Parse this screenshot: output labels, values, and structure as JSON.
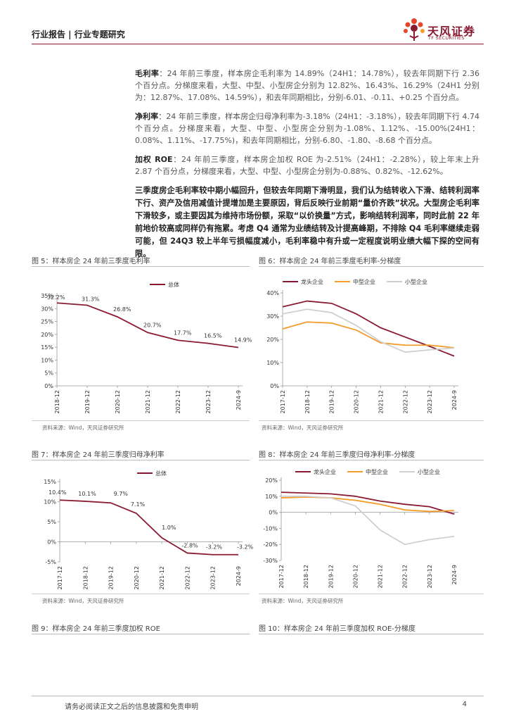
{
  "header": {
    "title": "行业报告 | 行业专题研究"
  },
  "logo": {
    "cn": "天风证券",
    "en": "TF SECURITIES"
  },
  "paragraphs": {
    "p1": {
      "key": "毛利率",
      "text": "：24 年前三季度，样本房企毛利率为 14.89%（24H1：14.78%），较去年同期下行 2.36 个百分点。分梯度来看，大型、中型、小型房企分别为 12.82%、16.43%、16.29%（24H1 分别为：12.87%、17.08%、14.59%），和去年同期相比，分别-6.01、-0.11、+0.25 个百分点。"
    },
    "p2": {
      "key": "净利率",
      "text": "：24 年前三季度，样本房企归母净利率为-3.18%（24H1：-3.18%），较去年同期下行 4.74 个百分点。分梯度来看，大型、中型、小型房企分别为-1.08%、1.12%、-15.00%(24H1：0.08%、1.11%、-17.75%)，和去年同期相比，分别-6.80、-1.80、-8.68 个百分点。"
    },
    "p3": {
      "key": "加权 ROE",
      "text": "：24 年前三季度，样本房企加权 ROE 为-2.51%（24H1：-2.28%），较上年末上升 2.87 个百分点，分梯度来看，大型、中型、小型房企分别为-0.88%、0.82%、-12.62%。"
    },
    "p4": "三季度房企毛利率较中期小幅回升，但较去年同期下滑明显，我们认为结转收入下滑、结转利润率下行、资产及信用减值计提增加是主要原因，背后反映行业前期“量价齐跌”状况。大型房企毛利率下滑较多，或主要因其为维持市场份额，采取“以价换量”方式，影响结转利润率，同时此前 22 年前地价较高或同样仍有拖累。考虑 Q4 通常为业绩结转及计提高峰期，不排除 Q4 毛利率继续走弱可能，但 24Q3 较上半年亏损幅度减小，毛利率稳中有升或一定程度说明业绩大幅下探的空间有限。"
  },
  "figures": {
    "fig5": {
      "title": "图 5：样本房企 24 年前三季度毛利率",
      "source": "资料来源：Wind，天风证券研究所"
    },
    "fig6": {
      "title": "图 6：样本房企 24 年前三季度毛利率-分梯度",
      "source": "资料来源：Wind，天风证券研究所"
    },
    "fig7": {
      "title": "图 7：样本房企 24 年前三季度归母净利率",
      "source": "资料来源：Wind，天风证券研究所"
    },
    "fig8": {
      "title": "图 8：样本房企 24 年前三季度归母净利率-分梯度",
      "source": "资料来源：Wind，天风证券研究所"
    },
    "fig9": {
      "title": "图 9：样本房企 24 年前三季度加权 ROE"
    },
    "fig10": {
      "title": "图 10：样本房企 24 年前三季度加权 ROE-分梯度"
    }
  },
  "footer": {
    "disclaimer": "请务必阅读正文之后的信息披露和免责申明",
    "page": "4"
  },
  "colors": {
    "accent": "#8a1a32",
    "mid": "#f29c2b",
    "small": "#cfcfcf"
  },
  "chart_data": [
    {
      "id": "fig5",
      "type": "line",
      "categories": [
        "2018-12",
        "2019-12",
        "2020-12",
        "2021-12",
        "2022-12",
        "2023-12",
        "2024-9"
      ],
      "series": [
        {
          "name": "总体",
          "values": [
            32.2,
            31.3,
            26.8,
            20.7,
            17.7,
            16.5,
            14.9
          ]
        }
      ],
      "data_labels": [
        "32.2%",
        "31.3%",
        "26.8%",
        "20.7%",
        "17.7%",
        "16.5%",
        "14.9%"
      ],
      "yticks": [
        "0%",
        "5%",
        "10%",
        "15%",
        "20%",
        "25%",
        "30%",
        "35%"
      ],
      "ylim": [
        0,
        35
      ],
      "legend": "top-center"
    },
    {
      "id": "fig6",
      "type": "line",
      "categories": [
        "2017-12",
        "2018-12",
        "2019-12",
        "2020-12",
        "2021-12",
        "2022-12",
        "2023-12",
        "2024-9"
      ],
      "series": [
        {
          "name": "龙头企业",
          "values": [
            34,
            36.5,
            35.5,
            31,
            25,
            21,
            17,
            12.8
          ]
        },
        {
          "name": "中型企业",
          "values": [
            24.5,
            27.5,
            27,
            24,
            18.5,
            17.5,
            17.5,
            16.4
          ]
        },
        {
          "name": "小型企业",
          "values": [
            31,
            33,
            31.5,
            26,
            19,
            14.5,
            15.5,
            16.3
          ]
        }
      ],
      "yticks": [
        "0%",
        "10%",
        "20%",
        "30%",
        "40%"
      ],
      "ylim": [
        0,
        40
      ],
      "legend": "top"
    },
    {
      "id": "fig7",
      "type": "line",
      "categories": [
        "2017-12",
        "2018-12",
        "2019-12",
        "2020-12",
        "2021-12",
        "2022-12",
        "2023-12",
        "2024-9"
      ],
      "series": [
        {
          "name": "总体",
          "values": [
            10.4,
            10.1,
            9.7,
            7.1,
            1.0,
            -2.8,
            -3.2,
            -3.2
          ]
        }
      ],
      "data_labels": [
        "10.4%",
        "10.1%",
        "9.7%",
        "7.1%",
        "1.0%",
        "-2.8%",
        "-3.2%",
        "-3.2%"
      ],
      "yticks": [
        "-5%",
        "0%",
        "5%",
        "10%",
        "15%"
      ],
      "ylim": [
        -5,
        15
      ],
      "legend": "top-center"
    },
    {
      "id": "fig8",
      "type": "line",
      "categories": [
        "2017-12",
        "2018-12",
        "2019-12",
        "2020-12",
        "2021-12",
        "2022-12",
        "2023-12",
        "2024-9"
      ],
      "series": [
        {
          "name": "龙头企业",
          "values": [
            12.5,
            12,
            11.5,
            10,
            7,
            5,
            3.5,
            -1.1
          ]
        },
        {
          "name": "中型企业",
          "values": [
            9,
            9.5,
            9,
            7.5,
            5,
            1.5,
            0.5,
            1.1
          ]
        },
        {
          "name": "小型企业",
          "values": [
            10,
            10,
            9,
            4,
            -11,
            -20,
            -17,
            -15
          ]
        }
      ],
      "yticks": [
        "-30%",
        "-20%",
        "-10%",
        "0%",
        "10%",
        "20%"
      ],
      "ylim": [
        -30,
        20
      ],
      "legend": "top"
    }
  ]
}
